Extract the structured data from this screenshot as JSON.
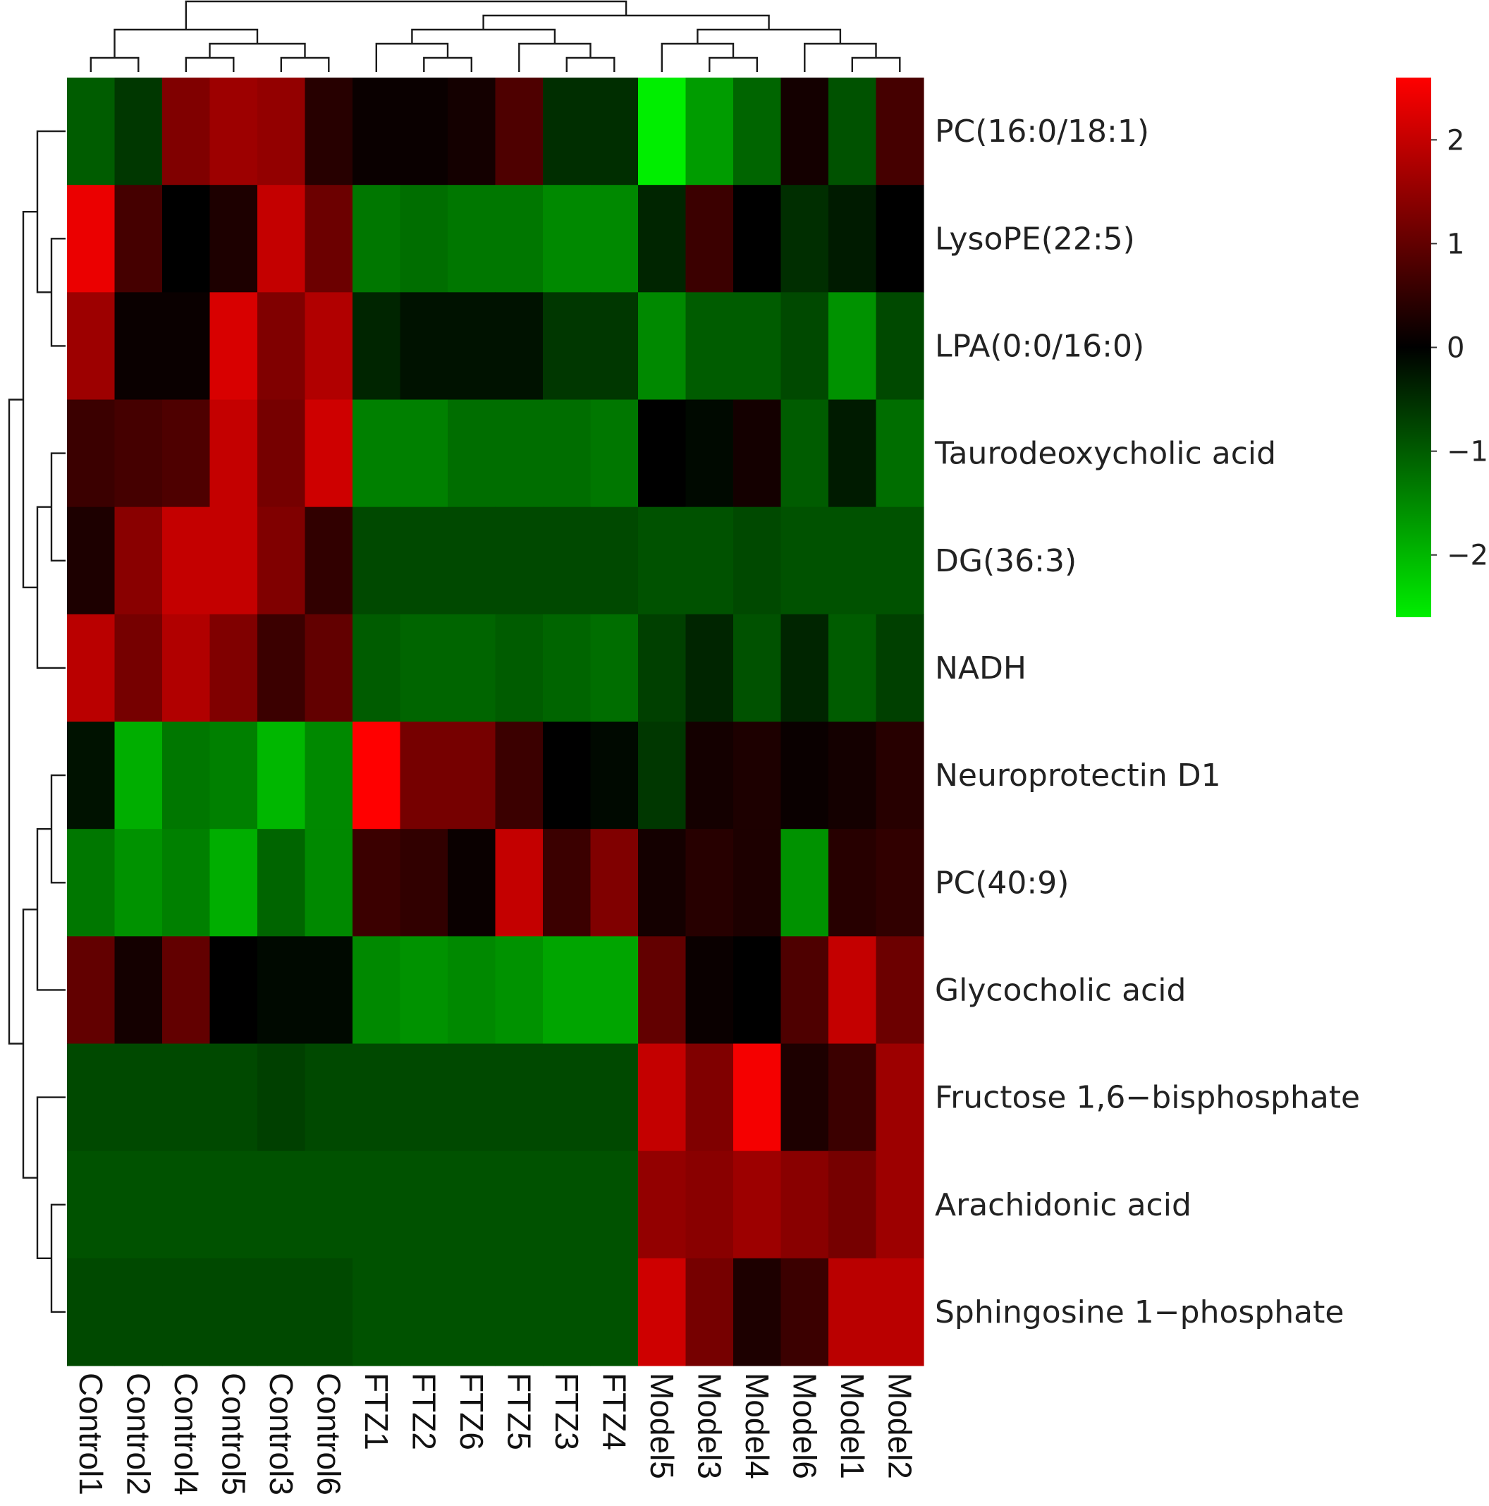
{
  "chart_data": {
    "type": "heatmap",
    "title": "",
    "xlabel": "",
    "ylabel": "",
    "columns": [
      "Control1",
      "Control2",
      "Control4",
      "Control5",
      "Control3",
      "Control6",
      "FTZ1",
      "FTZ2",
      "FTZ6",
      "FTZ5",
      "FTZ3",
      "FTZ4",
      "Model5",
      "Model3",
      "Model4",
      "Model6",
      "Model1",
      "Model2"
    ],
    "rows": [
      "PC(16:0/18:1)",
      "LysoPE(22:5)",
      "LPA(0:0/16:0)",
      "Taurodeoxycholic acid",
      "DG(36:3)",
      "NADH",
      "Neuroprotectin D1",
      "PC(40:9)",
      "Glycocholic acid",
      "Fructose 1,6−bisphosphate",
      "Arachidonic acid",
      "Sphingosine 1−phosphate"
    ],
    "values": [
      [
        -1.0,
        -0.6,
        1.3,
        1.6,
        1.5,
        0.4,
        0.1,
        0.1,
        0.2,
        0.8,
        -0.5,
        -0.5,
        -2.6,
        -1.7,
        -1.1,
        0.2,
        -0.9,
        0.7
      ],
      [
        2.4,
        0.7,
        0.0,
        0.3,
        2.0,
        1.1,
        -1.3,
        -1.2,
        -1.3,
        -1.3,
        -1.5,
        -1.5,
        -0.4,
        0.6,
        0.0,
        -0.5,
        -0.3,
        0.0
      ],
      [
        1.6,
        0.1,
        0.1,
        2.2,
        1.3,
        1.8,
        -0.4,
        -0.2,
        -0.2,
        -0.2,
        -0.6,
        -0.6,
        -1.5,
        -1.0,
        -1.0,
        -0.8,
        -1.6,
        -0.8
      ],
      [
        0.6,
        0.7,
        0.8,
        2.0,
        1.2,
        2.1,
        -1.4,
        -1.4,
        -1.2,
        -1.2,
        -1.2,
        -1.3,
        0.0,
        -0.1,
        0.2,
        -1.0,
        -0.3,
        -1.2
      ],
      [
        0.3,
        1.4,
        2.0,
        2.0,
        1.3,
        0.5,
        -0.8,
        -0.8,
        -0.8,
        -0.8,
        -0.8,
        -0.8,
        -0.9,
        -0.9,
        -0.8,
        -0.9,
        -0.9,
        -0.9
      ],
      [
        1.9,
        1.2,
        1.8,
        1.3,
        0.6,
        1.0,
        -1.0,
        -1.1,
        -1.1,
        -1.0,
        -1.1,
        -1.2,
        -0.7,
        -0.4,
        -0.9,
        -0.4,
        -1.0,
        -0.7
      ],
      [
        -0.2,
        -1.9,
        -1.3,
        -1.4,
        -2.0,
        -1.5,
        2.6,
        1.2,
        1.2,
        0.6,
        0.0,
        -0.1,
        -0.6,
        0.2,
        0.3,
        0.1,
        0.2,
        0.4
      ],
      [
        -1.3,
        -1.6,
        -1.4,
        -1.9,
        -1.1,
        -1.5,
        0.6,
        0.5,
        0.1,
        2.0,
        0.6,
        1.3,
        0.2,
        0.4,
        0.3,
        -1.6,
        0.4,
        0.5
      ],
      [
        1.0,
        0.2,
        1.0,
        0.0,
        -0.1,
        -0.1,
        -1.5,
        -1.6,
        -1.5,
        -1.6,
        -1.8,
        -1.8,
        1.0,
        0.1,
        0.0,
        0.8,
        2.0,
        1.1
      ],
      [
        -0.8,
        -0.8,
        -0.8,
        -0.8,
        -0.7,
        -0.8,
        -0.8,
        -0.8,
        -0.8,
        -0.8,
        -0.8,
        -0.8,
        2.0,
        1.3,
        2.5,
        0.3,
        0.6,
        1.6
      ],
      [
        -0.9,
        -0.9,
        -0.9,
        -0.9,
        -0.9,
        -0.9,
        -0.9,
        -0.9,
        -0.9,
        -0.9,
        -0.9,
        -0.9,
        1.5,
        1.4,
        1.6,
        1.4,
        1.2,
        1.6
      ],
      [
        -0.8,
        -0.8,
        -0.8,
        -0.8,
        -0.8,
        -0.8,
        -0.9,
        -0.9,
        -0.9,
        -0.9,
        -0.9,
        -0.9,
        2.1,
        1.2,
        0.3,
        0.6,
        1.9,
        1.9
      ]
    ],
    "color_scale": {
      "range": [
        -2.6,
        2.6
      ],
      "low": "#00ee00",
      "mid": "#000000",
      "high": "#ff0000",
      "ticks": [
        2,
        1,
        0,
        -1,
        -2
      ],
      "tick_labels": [
        "2",
        "1",
        "0",
        "−1",
        "−2"
      ]
    },
    "column_dendrogram": {
      "merges": [
        [
          0,
          1
        ],
        [
          2,
          3
        ],
        [
          4,
          5
        ],
        [
          15,
          17
        ],
        [
          9,
          10
        ],
        [
          10,
          11
        ],
        [
          7,
          8
        ],
        [
          6,
          7
        ],
        [
          8,
          9
        ],
        [
          12,
          13
        ],
        [
          13,
          14
        ],
        [
          14,
          15
        ],
        [
          15,
          16
        ],
        [
          1,
          3
        ],
        [
          0,
          1
        ],
        [
          16,
          17
        ],
        [
          12,
          16
        ],
        [
          3,
          6
        ],
        [
          6,
          12
        ]
      ],
      "show": true
    },
    "row_dendrogram": {
      "merges": [
        [
          10,
          11
        ],
        [
          9,
          10
        ],
        [
          1,
          2
        ],
        [
          0,
          1
        ],
        [
          3,
          4
        ],
        [
          6,
          7
        ],
        [
          5,
          6
        ],
        [
          2,
          5
        ],
        [
          8,
          9
        ],
        [
          0,
          2
        ],
        [
          6,
          8
        ]
      ],
      "show": true
    }
  }
}
